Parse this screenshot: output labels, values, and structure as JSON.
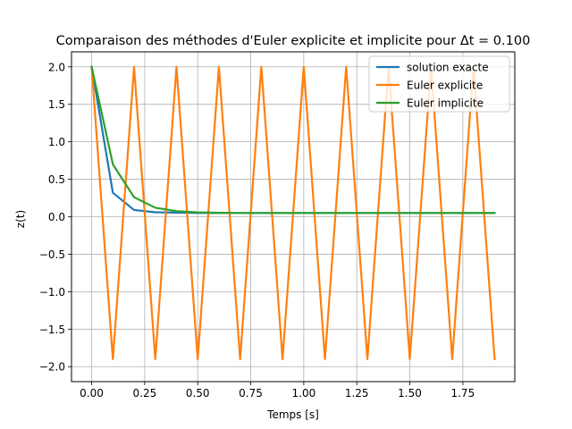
{
  "chart_data": {
    "type": "line",
    "title": "Comparaison des méthodes d'Euler explicite et implicite pour Δt = 0.100",
    "xlabel": "Temps [s]",
    "ylabel": "z(t)",
    "xlim": [
      -0.095,
      1.995
    ],
    "ylim": [
      -2.2,
      2.2
    ],
    "xticks": [
      0.0,
      0.25,
      0.5,
      0.75,
      1.0,
      1.25,
      1.5,
      1.75
    ],
    "xtick_labels": [
      "0.00",
      "0.25",
      "0.50",
      "0.75",
      "1.00",
      "1.25",
      "1.50",
      "1.75"
    ],
    "yticks": [
      -2.0,
      -1.5,
      -1.0,
      -0.5,
      0.0,
      0.5,
      1.0,
      1.5,
      2.0
    ],
    "ytick_labels": [
      "−2.0",
      "−1.5",
      "−1.0",
      "−0.5",
      "0.0",
      "0.5",
      "1.0",
      "1.5",
      "2.0"
    ],
    "grid": true,
    "legend_position": "top-right",
    "x": [
      0.0,
      0.1,
      0.2,
      0.3,
      0.4,
      0.5,
      0.6,
      0.7,
      0.8,
      0.9,
      1.0,
      1.1,
      1.2,
      1.3,
      1.4,
      1.5,
      1.6,
      1.7,
      1.8,
      1.9
    ],
    "series": [
      {
        "name": "solution exacte",
        "color": "#1f77b4",
        "values": [
          2.0,
          0.32,
          0.09,
          0.06,
          0.055,
          0.05,
          0.05,
          0.05,
          0.05,
          0.05,
          0.05,
          0.05,
          0.05,
          0.05,
          0.05,
          0.05,
          0.05,
          0.05,
          0.05,
          0.05
        ]
      },
      {
        "name": "Euler explicite",
        "color": "#ff7f0e",
        "values": [
          2.0,
          -1.9,
          2.0,
          -1.9,
          2.0,
          -1.9,
          2.0,
          -1.9,
          2.0,
          -1.9,
          2.0,
          -1.9,
          2.0,
          -1.9,
          2.0,
          -1.9,
          2.0,
          -1.9,
          2.0,
          -1.9
        ]
      },
      {
        "name": "Euler implicite",
        "color": "#2ca02c",
        "values": [
          2.0,
          0.7,
          0.26,
          0.12,
          0.075,
          0.058,
          0.052,
          0.05,
          0.05,
          0.05,
          0.05,
          0.05,
          0.05,
          0.05,
          0.05,
          0.05,
          0.05,
          0.05,
          0.05,
          0.05
        ]
      }
    ]
  }
}
